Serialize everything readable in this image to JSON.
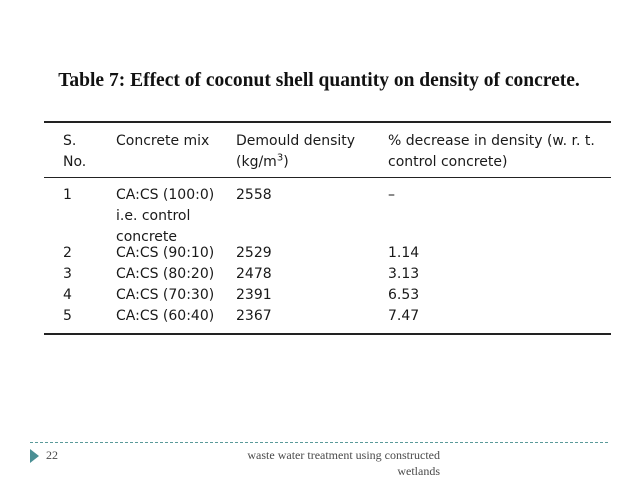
{
  "slide": {
    "title": "Table 7: Effect of coconut shell quantity on density of concrete.",
    "page_number": "22",
    "footer_line1": "waste water treatment using constructed",
    "footer_line2": "wetlands"
  },
  "table": {
    "headers": {
      "sno_line1": "S.",
      "sno_line2": "No.",
      "mix": "Concrete mix",
      "density_line1": "Demould density",
      "density_unit_prefix": "(kg/m",
      "density_unit_sup": "3",
      "density_unit_suffix": ")",
      "decrease_line1": "% decrease in density (w. r. t.",
      "decrease_line2": "control concrete)"
    },
    "rows": [
      {
        "sno": "1",
        "mix_line1": "CA:CS (100:0)",
        "mix_line2": "i.e. control",
        "mix_line3": "concrete",
        "density": "2558",
        "decrease": "–"
      },
      {
        "sno": "2",
        "mix": "CA:CS (90:10)",
        "density": "2529",
        "decrease": "1.14"
      },
      {
        "sno": "3",
        "mix": "CA:CS (80:20)",
        "density": "2478",
        "decrease": "3.13"
      },
      {
        "sno": "4",
        "mix": "CA:CS (70:30)",
        "density": "2391",
        "decrease": "6.53"
      },
      {
        "sno": "5",
        "mix": "CA:CS (60:40)",
        "density": "2367",
        "decrease": "7.47"
      }
    ]
  }
}
